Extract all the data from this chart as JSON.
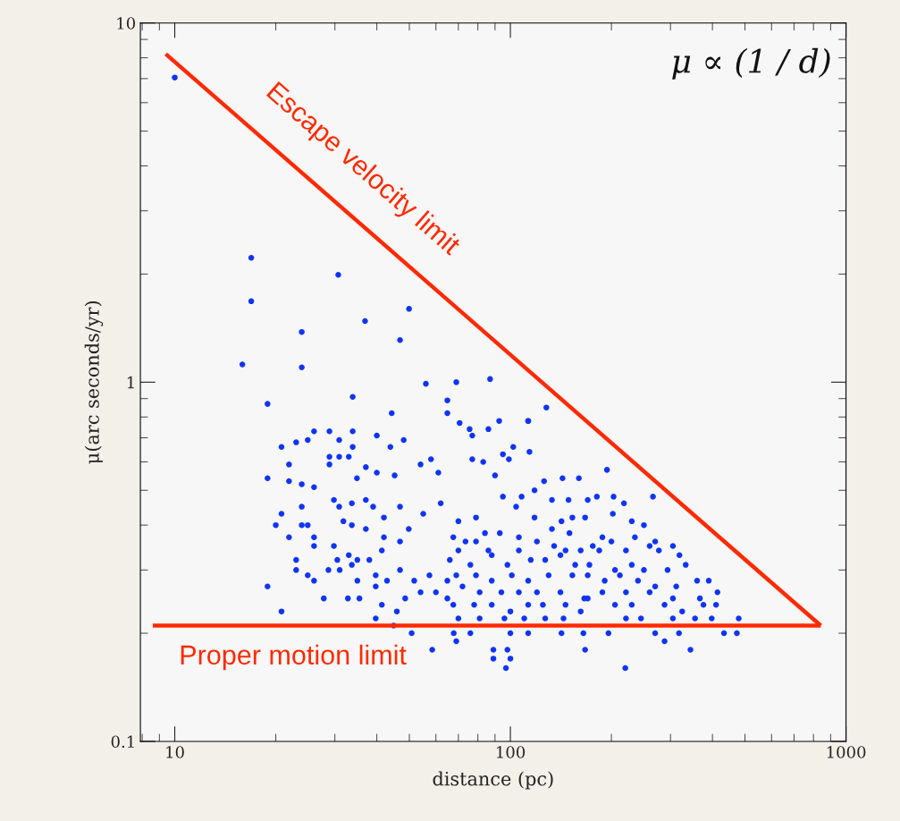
{
  "chart_data": {
    "type": "scatter",
    "xlabel": "distance (pc)",
    "ylabel": "μ(arc seconds/yr)",
    "log": "xy",
    "xlim": [
      7.9,
      1000
    ],
    "ylim": [
      0.1,
      10
    ],
    "xticks": [
      10,
      100,
      1000
    ],
    "yticks": [
      0.1,
      1,
      10
    ],
    "grid": false,
    "series": [
      {
        "color": "#1034f5",
        "marker": "circle",
        "x": [
          10,
          16.9,
          16.9,
          30.7,
          15.9,
          23.9,
          23.9,
          36.9,
          49.9,
          46.9,
          18.9,
          33.9,
          44.3,
          56,
          69,
          87,
          64.9,
          64.9,
          128,
          113,
          194,
          266,
          26,
          20.8,
          23,
          24.9,
          28.9,
          30.9,
          33.9,
          33.9,
          40,
          48.1,
          43.9,
          18.9,
          21.9,
          21.9,
          23.9,
          26,
          28.9,
          28.9,
          30.9,
          33,
          37.1,
          40,
          34.9,
          45.2,
          54,
          58,
          61,
          20.8,
          20,
          21.9,
          23.9,
          23.9,
          24.9,
          26,
          26,
          23,
          23,
          24.9,
          26,
          18.9,
          20.8,
          27.8,
          32.8,
          35.5,
          29.8,
          30.9,
          33.7,
          37.1,
          39,
          42,
          46.9,
          31.8,
          33.7,
          37.1,
          42,
          49.8,
          55,
          62,
          29.8,
          30.5,
          33,
          35,
          38,
          41.4,
          46.9,
          28.7,
          31,
          33.7,
          35,
          39.7,
          42.9,
          46.9,
          51.7,
          57.4,
          64.9,
          39.7,
          41.4,
          45.9,
          48.6,
          54,
          60,
          64.9,
          39.7,
          44.9,
          50.8,
          67.8,
          58.5,
          70.6,
          75.6,
          77,
          86,
          92.6,
          113,
          102,
          114,
          95,
          99,
          77,
          83,
          90,
          126,
          143,
          160,
          95,
          108,
          118,
          133,
          149,
          170,
          181,
          203,
          218,
          202,
          104,
          118,
          79,
          70,
          142,
          153,
          167,
          230,
          250,
          84,
          93,
          106,
          133,
          150,
          188,
          235,
          270,
          305,
          67.6,
          73.5,
          79,
          120,
          200,
          260,
          221,
          277,
          70,
          86,
          106,
          135,
          146,
          162,
          176,
          184,
          319,
          333,
          66,
          76,
          88,
          98,
          115,
          127,
          141,
          156,
          172,
          205,
          230,
          250,
          294,
          360,
          390,
          414,
          69,
          79,
          88,
          101,
          113,
          130,
          153,
          170,
          191,
          212,
          240,
          270,
          312,
          72,
          81,
          94,
          106,
          120,
          141,
          166,
          188,
          221,
          260,
          305,
          367,
          410,
          67.6,
          78,
          88,
          100,
          113,
          125,
          146,
          170,
          205,
          230,
          288,
          325,
          376,
          70,
          81,
          96,
          110,
          127,
          144,
          162,
          221,
          245,
          305,
          355,
          398,
          479,
          69,
          76,
          100,
          113,
          142,
          165,
          196,
          270,
          288,
          318,
          433,
          473,
          89,
          98,
          167,
          344,
          89,
          100,
          97,
          220
        ],
        "values": [
          7.05,
          2.22,
          1.68,
          1.99,
          1.12,
          1.38,
          1.1,
          1.48,
          1.6,
          1.31,
          0.87,
          0.91,
          0.82,
          0.99,
          1.0,
          1.02,
          0.89,
          0.82,
          0.85,
          0.78,
          0.57,
          0.48,
          0.73,
          0.66,
          0.68,
          0.69,
          0.73,
          0.69,
          0.73,
          0.66,
          0.71,
          0.69,
          0.66,
          0.54,
          0.59,
          0.53,
          0.52,
          0.51,
          0.62,
          0.59,
          0.62,
          0.62,
          0.58,
          0.56,
          0.54,
          0.55,
          0.59,
          0.61,
          0.56,
          0.43,
          0.4,
          0.37,
          0.45,
          0.4,
          0.4,
          0.37,
          0.35,
          0.32,
          0.3,
          0.29,
          0.28,
          0.27,
          0.23,
          0.25,
          0.25,
          0.25,
          0.47,
          0.45,
          0.46,
          0.47,
          0.45,
          0.42,
          0.45,
          0.41,
          0.4,
          0.39,
          0.37,
          0.39,
          0.43,
          0.46,
          0.35,
          0.32,
          0.33,
          0.32,
          0.32,
          0.34,
          0.36,
          0.3,
          0.3,
          0.31,
          0.28,
          0.29,
          0.28,
          0.3,
          0.28,
          0.29,
          0.28,
          0.27,
          0.24,
          0.23,
          0.25,
          0.26,
          0.26,
          0.25,
          0.22,
          0.21,
          0.2,
          0.2,
          0.18,
          0.77,
          0.74,
          0.71,
          0.74,
          0.78,
          0.78,
          0.66,
          0.64,
          0.63,
          0.61,
          0.61,
          0.6,
          0.55,
          0.53,
          0.54,
          0.54,
          0.48,
          0.48,
          0.5,
          0.47,
          0.47,
          0.47,
          0.48,
          0.48,
          0.46,
          0.43,
          0.45,
          0.42,
          0.42,
          0.41,
          0.41,
          0.42,
          0.42,
          0.41,
          0.4,
          0.38,
          0.38,
          0.37,
          0.39,
          0.38,
          0.37,
          0.37,
          0.36,
          0.35,
          0.37,
          0.36,
          0.36,
          0.36,
          0.36,
          0.35,
          0.34,
          0.34,
          0.34,
          0.34,
          0.34,
          0.35,
          0.34,
          0.34,
          0.35,
          0.34,
          0.33,
          0.31,
          0.32,
          0.31,
          0.33,
          0.31,
          0.32,
          0.32,
          0.33,
          0.31,
          0.31,
          0.3,
          0.31,
          0.3,
          0.3,
          0.28,
          0.28,
          0.26,
          0.29,
          0.29,
          0.28,
          0.29,
          0.28,
          0.29,
          0.29,
          0.29,
          0.28,
          0.29,
          0.28,
          0.27,
          0.27,
          0.27,
          0.26,
          0.26,
          0.26,
          0.26,
          0.26,
          0.25,
          0.26,
          0.26,
          0.26,
          0.25,
          0.25,
          0.24,
          0.24,
          0.24,
          0.24,
          0.23,
          0.24,
          0.24,
          0.24,
          0.25,
          0.24,
          0.24,
          0.24,
          0.23,
          0.24,
          0.22,
          0.22,
          0.22,
          0.22,
          0.22,
          0.22,
          0.23,
          0.22,
          0.22,
          0.22,
          0.22,
          0.22,
          0.22,
          0.19,
          0.2,
          0.2,
          0.2,
          0.2,
          0.2,
          0.2,
          0.2,
          0.19,
          0.2,
          0.2,
          0.2,
          0.18,
          0.18,
          0.18,
          0.18,
          0.17,
          0.17,
          0.16,
          0.16
        ]
      },
      {
        "type": "line",
        "color": "#ff2a00",
        "line_style": "solid",
        "x": [
          9.4,
          841
        ],
        "values": [
          8.2,
          0.21
        ]
      },
      {
        "type": "line",
        "color": "#ff2a00",
        "line_style": "solid",
        "x": [
          8.6,
          841
        ],
        "values": [
          0.21,
          0.21
        ]
      }
    ],
    "annotations": [
      "Escape velocity limit",
      "Proper motion limit",
      "μ ∝ (1 / d)"
    ]
  }
}
